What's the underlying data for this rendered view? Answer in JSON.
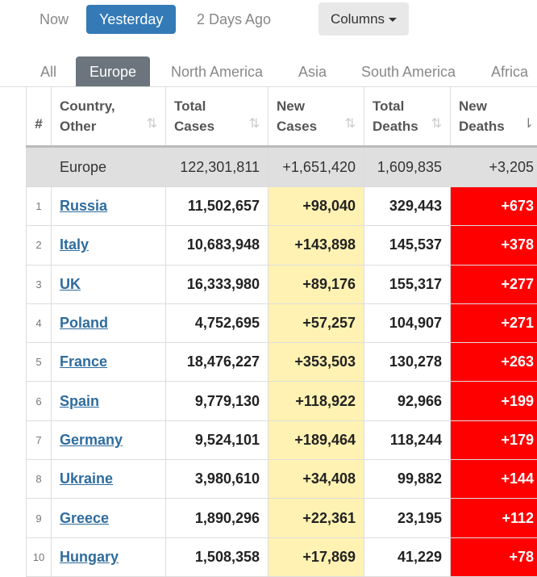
{
  "day_tabs": [
    "Now",
    "Yesterday",
    "2 Days Ago"
  ],
  "columns_button": "Columns",
  "region_tabs": [
    "All",
    "Europe",
    "North America",
    "Asia",
    "South America",
    "Africa"
  ],
  "headers": {
    "index": "#",
    "country_line1": "Country,",
    "country_line2": "Other",
    "total_cases_line1": "Total",
    "total_cases_line2": "Cases",
    "new_cases_line1": "New",
    "new_cases_line2": "Cases",
    "total_deaths_line1": "Total",
    "total_deaths_line2": "Deaths",
    "new_deaths_line1": "New",
    "new_deaths_line2": "Deaths"
  },
  "total_row": {
    "country": "Europe",
    "total_cases": "122,301,811",
    "new_cases": "+1,651,420",
    "total_deaths": "1,609,835",
    "new_deaths": "+3,205"
  },
  "rows": [
    {
      "index": "1",
      "country": "Russia",
      "total_cases": "11,502,657",
      "new_cases": "+98,040",
      "total_deaths": "329,443",
      "new_deaths": "+673"
    },
    {
      "index": "2",
      "country": "Italy",
      "total_cases": "10,683,948",
      "new_cases": "+143,898",
      "total_deaths": "145,537",
      "new_deaths": "+378"
    },
    {
      "index": "3",
      "country": "UK",
      "total_cases": "16,333,980",
      "new_cases": "+89,176",
      "total_deaths": "155,317",
      "new_deaths": "+277"
    },
    {
      "index": "4",
      "country": "Poland",
      "total_cases": "4,752,695",
      "new_cases": "+57,257",
      "total_deaths": "104,907",
      "new_deaths": "+271"
    },
    {
      "index": "5",
      "country": "France",
      "total_cases": "18,476,227",
      "new_cases": "+353,503",
      "total_deaths": "130,278",
      "new_deaths": "+263"
    },
    {
      "index": "6",
      "country": "Spain",
      "total_cases": "9,779,130",
      "new_cases": "+118,922",
      "total_deaths": "92,966",
      "new_deaths": "+199"
    },
    {
      "index": "7",
      "country": "Germany",
      "total_cases": "9,524,101",
      "new_cases": "+189,464",
      "total_deaths": "118,244",
      "new_deaths": "+179"
    },
    {
      "index": "8",
      "country": "Ukraine",
      "total_cases": "3,980,610",
      "new_cases": "+34,408",
      "total_deaths": "99,882",
      "new_deaths": "+144"
    },
    {
      "index": "9",
      "country": "Greece",
      "total_cases": "1,890,296",
      "new_cases": "+22,361",
      "total_deaths": "23,195",
      "new_deaths": "+112"
    },
    {
      "index": "10",
      "country": "Hungary",
      "total_cases": "1,508,358",
      "new_cases": "+17,869",
      "total_deaths": "41,229",
      "new_deaths": "+78"
    }
  ],
  "colors": {
    "active_day_tab": "#337ab7",
    "active_region_tab": "#6c757d",
    "new_cases_bg": "#fff2b3",
    "new_deaths_bg": "#ff0000",
    "country_link": "#2e6c9e"
  },
  "icons": {
    "sort": "sort-arrows-icon",
    "sort_desc": "sort-desc-icon",
    "caret": "caret-down-icon"
  }
}
